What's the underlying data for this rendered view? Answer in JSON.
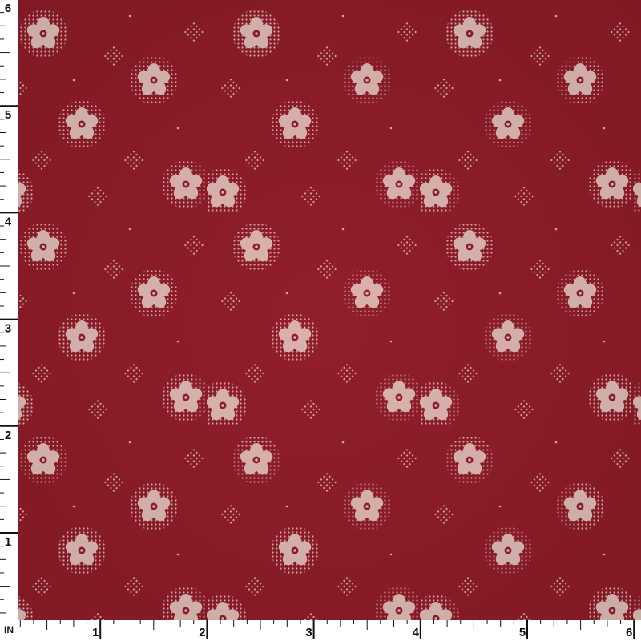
{
  "ruler": {
    "unit": "IN",
    "bottom_labels": [
      "1",
      "2",
      "3",
      "4",
      "5",
      "6"
    ],
    "left_labels": [
      "1",
      "2",
      "3",
      "4",
      "5",
      "6"
    ]
  }
}
